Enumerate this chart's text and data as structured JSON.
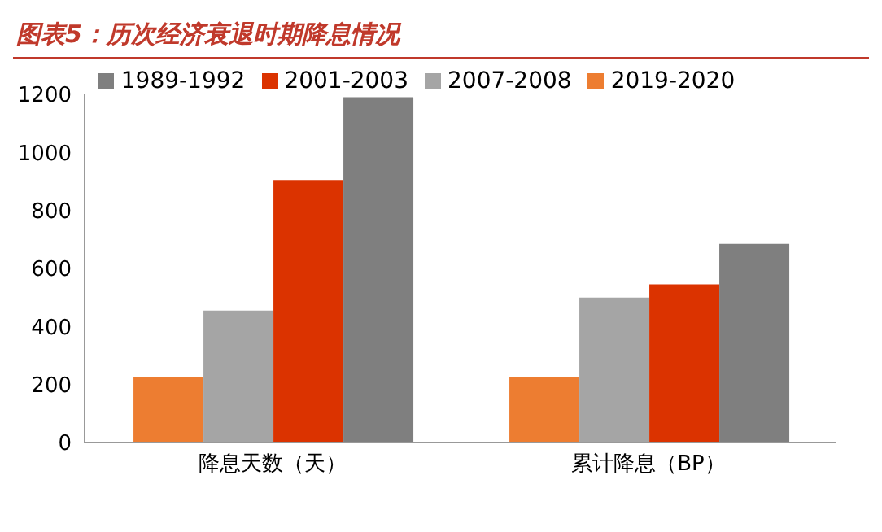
{
  "chart_data": {
    "type": "bar",
    "title": "图表5：历次经济衰退时期降息情况",
    "categories": [
      "降息天数（天）",
      "累计降息（BP）"
    ],
    "series": [
      {
        "name": "2019-2020",
        "color": "#ed7d31",
        "values": [
          225,
          225
        ]
      },
      {
        "name": "2007-2008",
        "color": "#a5a5a5",
        "values": [
          455,
          500
        ]
      },
      {
        "name": "2001-2003",
        "color": "#db3300",
        "values": [
          905,
          545
        ]
      },
      {
        "name": "1989-1992",
        "color": "#7f7f7f",
        "values": [
          1190,
          685
        ]
      }
    ],
    "ylim": [
      0,
      1200
    ],
    "yticks": [
      0,
      200,
      400,
      600,
      800,
      1000,
      1200
    ],
    "grid": false,
    "legend": "top"
  }
}
